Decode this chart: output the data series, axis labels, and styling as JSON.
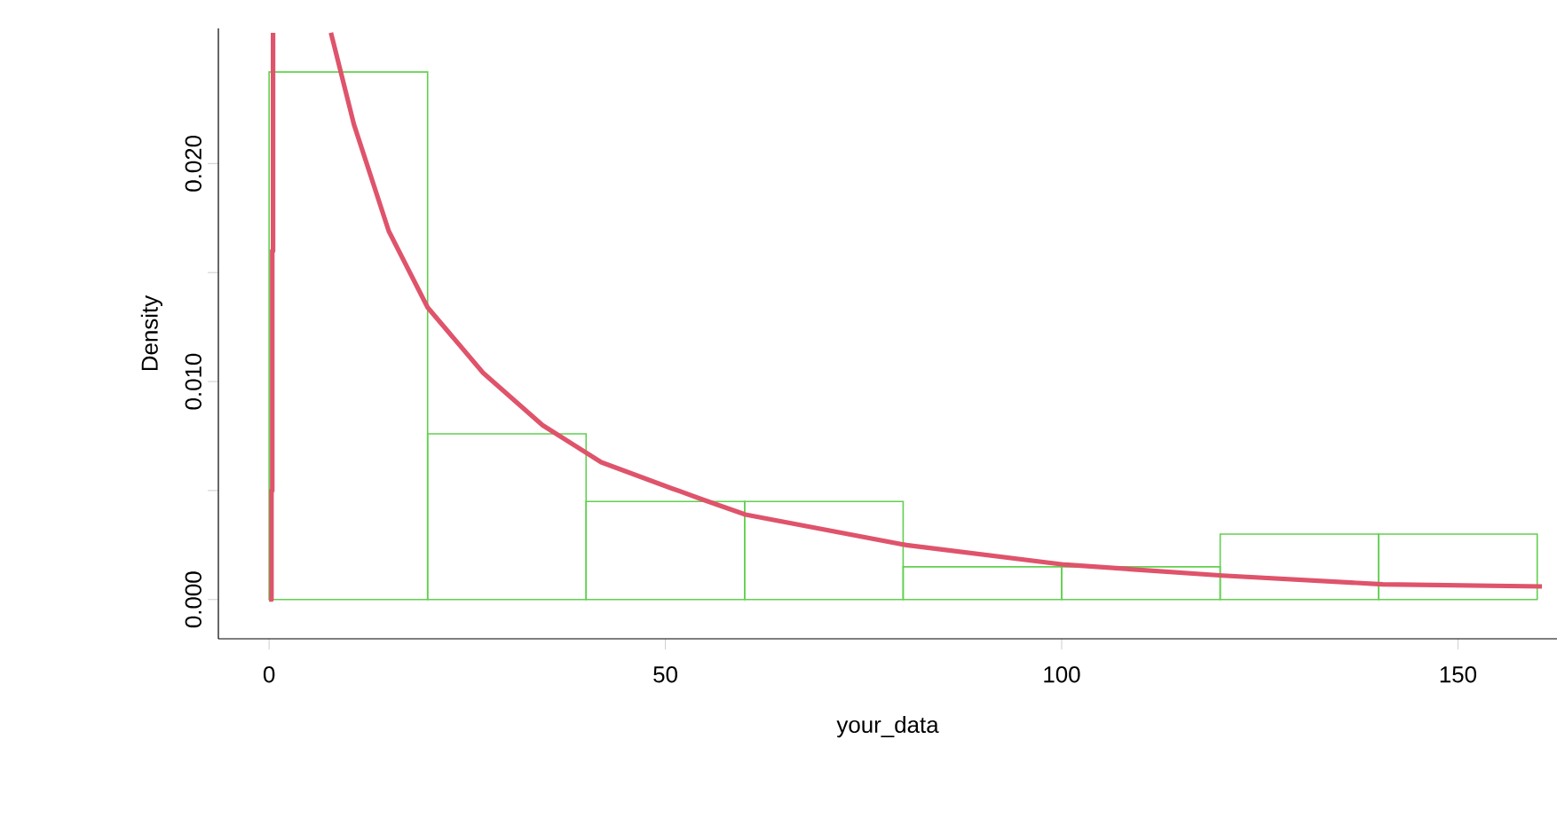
{
  "chart_data": {
    "type": "histogram",
    "xlabel": "your_data",
    "ylabel": "Density",
    "bins": [
      0,
      20,
      40,
      60,
      80,
      100,
      120,
      140,
      160
    ],
    "values": [
      0.0242,
      0.0076,
      0.0045,
      0.0045,
      0.0015,
      0.0015,
      0.003,
      0.003
    ],
    "color": "#61d04f",
    "series": [
      {
        "type": "line",
        "color": "#df536b",
        "x": [
          0,
          0.3,
          0.3,
          0.4,
          0.4,
          0.5,
          0.5
        ],
        "values": [
          0,
          0,
          0.005,
          0.005,
          0.016,
          0.016,
          0.026
        ]
      },
      {
        "type": "line",
        "color": "#df536b",
        "x": [
          7.8,
          10.7,
          15.1,
          20,
          27,
          34.5,
          41.9,
          50.8,
          54.6,
          60.1,
          80.4,
          100.4,
          120.3,
          140.5,
          160.6
        ],
        "values": [
          0.026,
          0.0218,
          0.0169,
          0.0134,
          0.0104,
          0.008,
          0.0063,
          0.0051,
          0.0046,
          0.0039,
          0.0025,
          0.0016,
          0.0011,
          0.0007,
          0.0006
        ]
      }
    ],
    "xlim": [
      -6.4,
      162.5
    ],
    "ylim": [
      -0.0018,
      0.0262
    ],
    "xticks": [
      0,
      50,
      100,
      150
    ],
    "yticks": [
      {
        "value": 0,
        "label": "0.000"
      },
      {
        "value": 0.005,
        "label": null
      },
      {
        "value": 0.01,
        "label": "0.010"
      },
      {
        "value": 0.015,
        "label": null
      },
      {
        "value": 0.02,
        "label": "0.020"
      }
    ],
    "grid": false
  }
}
